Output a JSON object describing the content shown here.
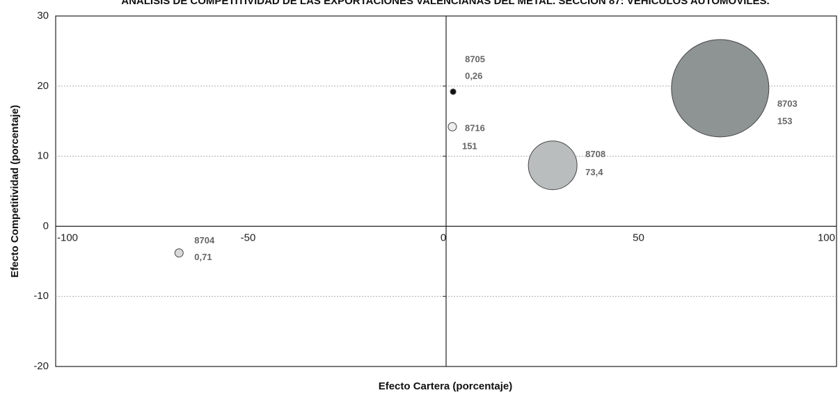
{
  "chart_data": {
    "type": "bubble",
    "title": "ANÁLISIS DE COMPETITIVIDAD DE LAS EXPORTACIONES VALENCIANAS DEL METAL. SECCIÓN 87: VEHÍCULOS AUTOMÓVILES.",
    "x_label": "Efecto Cartera (porcentaje)",
    "y_label": "Efecto Competitividad (porcentaje)",
    "xlim": [
      -100,
      100
    ],
    "xticks": [
      -100,
      -50,
      0,
      50,
      100
    ],
    "ylim": [
      -20,
      30
    ],
    "yticks": [
      -20,
      -10,
      0,
      10,
      20,
      30
    ],
    "grid": true,
    "series": [
      {
        "names": [
          "8705",
          "8716",
          "8708",
          "8703",
          "8704"
        ],
        "x": [
          1.8,
          1.6,
          27.3,
          70.2,
          -68.4
        ],
        "values": [
          19.2,
          14.2,
          8.7,
          19.7,
          -3.8
        ],
        "sizes": [
          0.33,
          0.73,
          25,
          100,
          0.73
        ],
        "numbers": [
          0.26,
          151,
          73.4,
          153,
          0.71
        ],
        "number_labels": [
          "0,26",
          "151",
          "73,4",
          "153",
          "0,71"
        ],
        "colors": [
          "#111111",
          "#eeeeee",
          "#b9bdbd",
          "#8e9494",
          "#d9d9d9"
        ]
      }
    ]
  }
}
